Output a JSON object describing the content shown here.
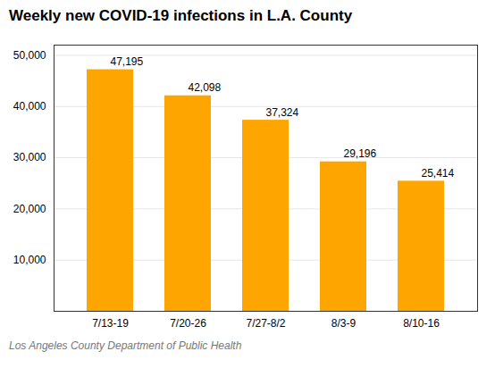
{
  "chart_data": {
    "type": "bar",
    "title": "Weekly new COVID-19 infections in L.A. County",
    "categories": [
      "7/13-19",
      "7/20-26",
      "7/27-8/2",
      "8/3-9",
      "8/10-16"
    ],
    "values": [
      47195,
      42098,
      37324,
      29196,
      25414
    ],
    "value_labels": [
      "47,195",
      "42,098",
      "37,324",
      "29,196",
      "25,414"
    ],
    "data_labels": true,
    "color": "#FFA500",
    "ylim": [
      0,
      52000
    ],
    "yticks": [
      {
        "value": 10000,
        "label": "10,000"
      },
      {
        "value": 20000,
        "label": "20,000"
      },
      {
        "value": 30000,
        "label": "30,000"
      },
      {
        "value": 40000,
        "label": "40,000"
      },
      {
        "value": 50000,
        "label": "50,000"
      }
    ],
    "grid": true,
    "annotations": [
      "Los Angeles County Department of Public Health"
    ]
  }
}
